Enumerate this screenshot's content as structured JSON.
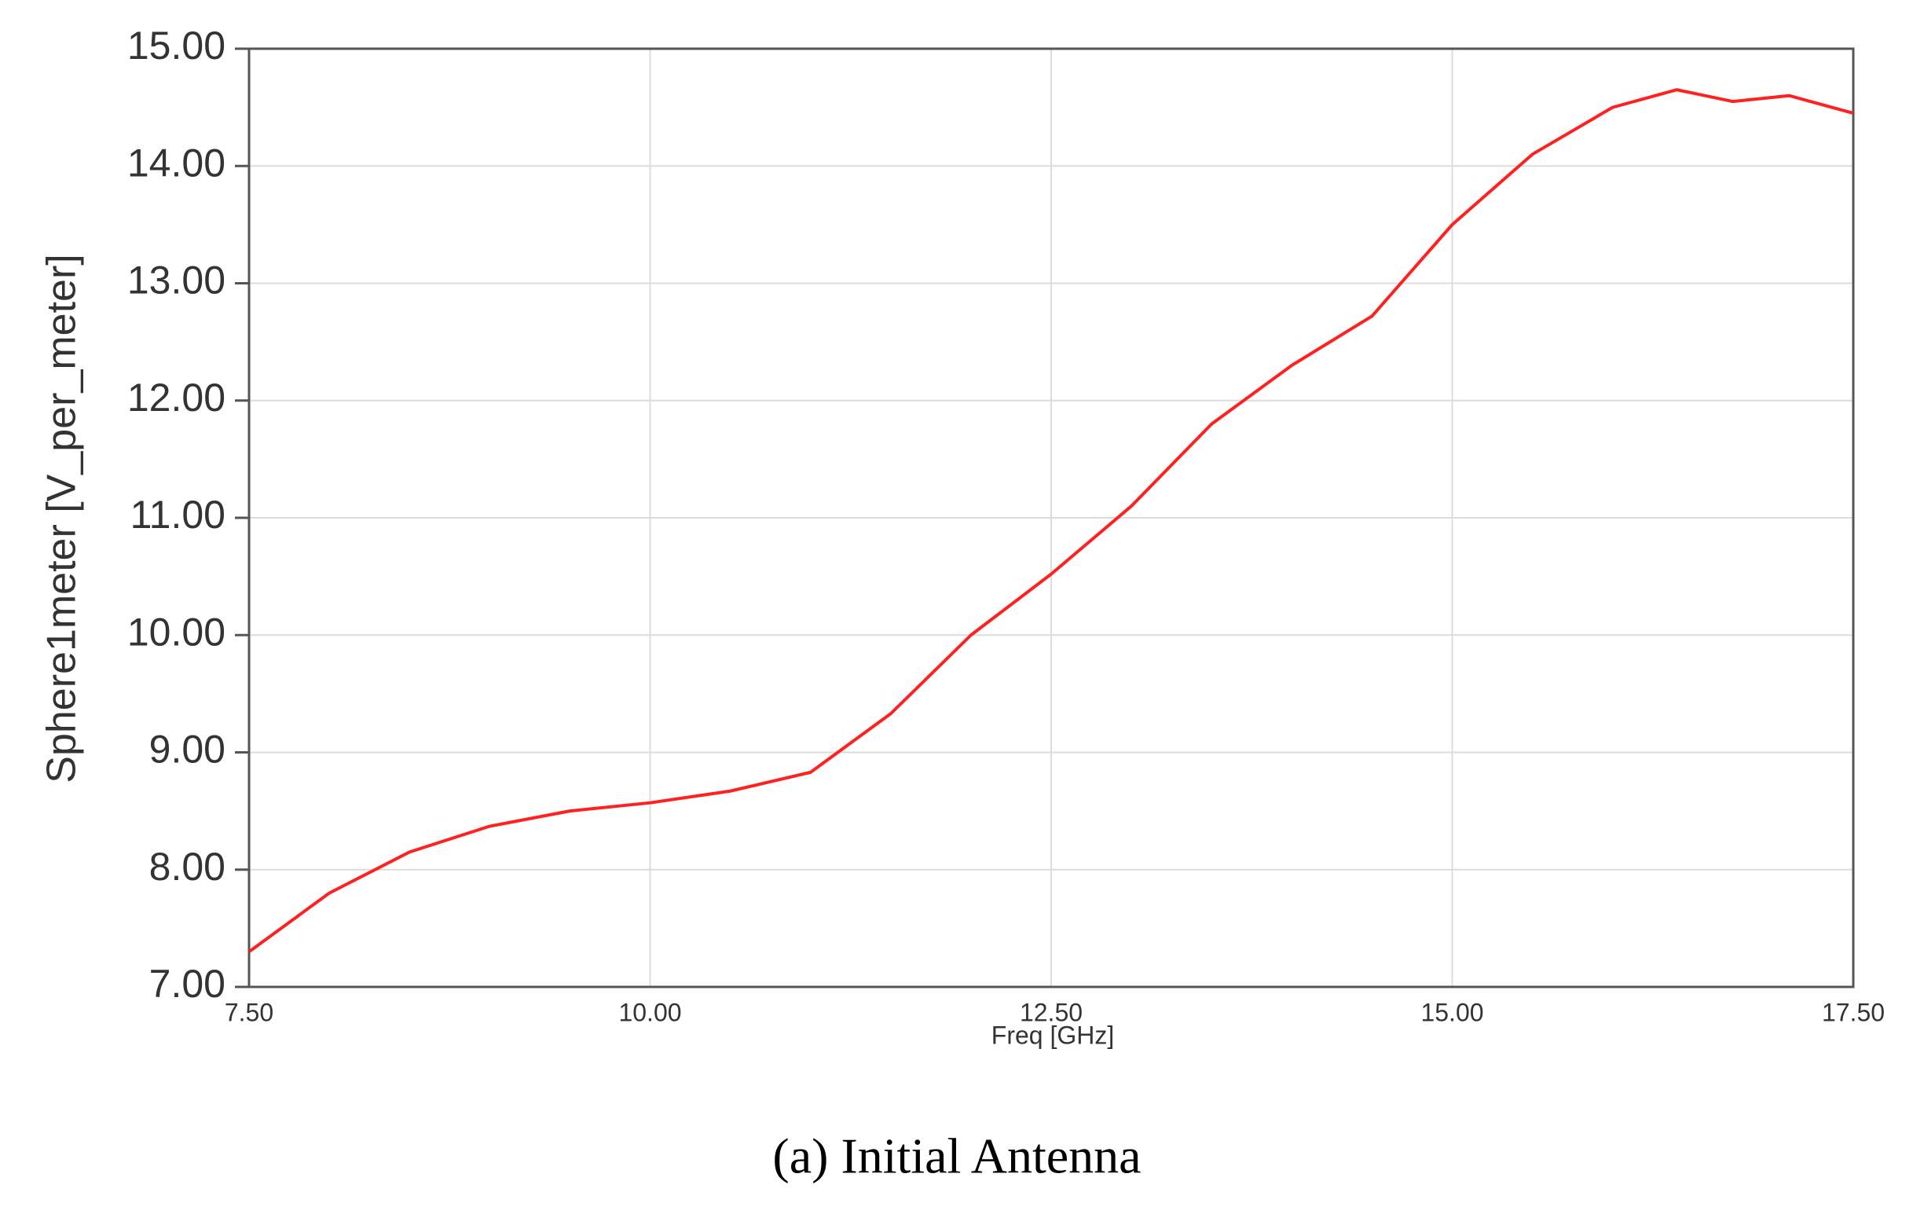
{
  "chart_data": {
    "type": "line",
    "x_label": "Freq [GHz]",
    "y_label": "Sphere1meter [V_per_meter]",
    "caption": "(a) Initial Antenna",
    "x": [
      7.5,
      8.0,
      8.5,
      9.0,
      9.5,
      10.0,
      10.5,
      11.0,
      11.5,
      12.0,
      12.5,
      13.0,
      13.5,
      14.0,
      14.5,
      15.0,
      15.5,
      16.0,
      16.4,
      16.75,
      17.1,
      17.5
    ],
    "series": [
      {
        "name": "Sphere1meter",
        "color": "#ff2020",
        "values": [
          7.3,
          7.8,
          8.15,
          8.37,
          8.5,
          8.57,
          8.67,
          8.83,
          9.33,
          10.0,
          10.52,
          11.1,
          11.8,
          12.3,
          12.72,
          13.5,
          14.1,
          14.5,
          14.65,
          14.55,
          14.6,
          14.45
        ]
      }
    ],
    "xlim": [
      7.5,
      17.5
    ],
    "xticks": [
      {
        "value": 7.5,
        "label": "7.50"
      },
      {
        "value": 10,
        "label": "10.00"
      },
      {
        "value": 12.5,
        "label": "12.50"
      },
      {
        "value": 15,
        "label": "15.00"
      },
      {
        "value": 17.5,
        "label": "17.50"
      }
    ],
    "ylim": [
      7,
      15
    ],
    "yticks": [
      {
        "value": 7,
        "label": "7.00"
      },
      {
        "value": 8,
        "label": "8.00"
      },
      {
        "value": 9,
        "label": "9.00"
      },
      {
        "value": 10,
        "label": "10.00"
      },
      {
        "value": 11,
        "label": "11.00"
      },
      {
        "value": 12,
        "label": "12.00"
      },
      {
        "value": 13,
        "label": "13.00"
      },
      {
        "value": 14,
        "label": "14.00"
      },
      {
        "value": 15,
        "label": "15.00"
      }
    ],
    "grid": true
  }
}
